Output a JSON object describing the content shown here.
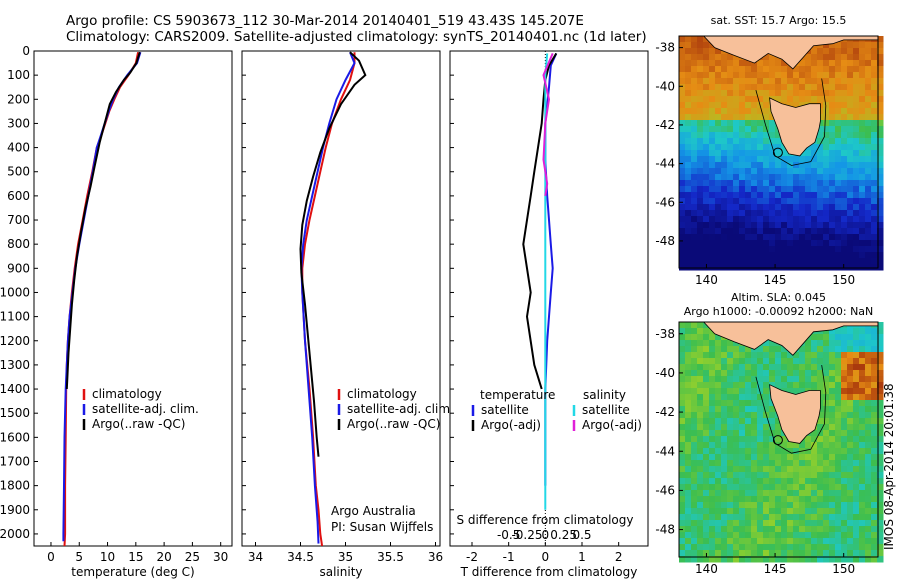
{
  "header": {
    "line1": "Argo profile: CS 5903673_112 30-Mar-2014 20140401_519 43.43S 145.207E",
    "line2": "Climatology: CARS2009. Satellite-adjusted climatology: synTS_20140401.nc (1d later)"
  },
  "colors": {
    "climatology": "#e01010",
    "satellite": "#1a1ae6",
    "argo": "#000000",
    "sat_salinity": "#22d8e6",
    "argo_salinity": "#e020d8",
    "land": "#f7c09a",
    "coast": "#000000"
  },
  "credits": {
    "line1": "Argo Australia",
    "line2": "PI: Susan Wijffels"
  },
  "watermark": "IMOS 08-Apr-2014 20:01:38",
  "chart_data": [
    {
      "type": "line",
      "xlabel": "temperature (deg C)",
      "xticks": [
        "0",
        "5",
        "10",
        "15",
        "20",
        "25",
        "30"
      ],
      "yticks": [
        "0",
        "100",
        "200",
        "300",
        "400",
        "500",
        "600",
        "700",
        "800",
        "900",
        "1000",
        "1100",
        "1200",
        "1300",
        "1400",
        "1500",
        "1600",
        "1700",
        "1800",
        "1900",
        "2000"
      ],
      "xlim": [
        -3,
        32
      ],
      "ylim": [
        2050,
        0
      ],
      "legend": [
        "climatology",
        "satellite-adj. clim.",
        "Argo(..raw -QC)"
      ],
      "series": [
        {
          "name": "climatology",
          "color_key": "climatology",
          "x": [
            15.4,
            15,
            13.7,
            12.2,
            11.2,
            10.3,
            9.6,
            8.9,
            8.1,
            7.3,
            6.4,
            5.6,
            4.8,
            4.2,
            3.7,
            3.3,
            3.0,
            2.8,
            2.7,
            2.6,
            2.5,
            2.5,
            2.4
          ],
          "y": [
            5,
            50,
            100,
            150,
            200,
            250,
            300,
            350,
            400,
            500,
            600,
            700,
            800,
            900,
            1000,
            1100,
            1200,
            1300,
            1400,
            1600,
            1800,
            2000,
            2050
          ]
        },
        {
          "name": "satellite-adj. clim.",
          "color_key": "satellite",
          "x": [
            15.8,
            15.2,
            13.5,
            12,
            11,
            10.2,
            9.5,
            8.8,
            8.1,
            7.4,
            6.6,
            5.8,
            5.0,
            4.3,
            3.8,
            3.3,
            3.0,
            2.8,
            2.6,
            2.4,
            2.3,
            2.2,
            2.2
          ],
          "y": [
            5,
            50,
            100,
            150,
            200,
            250,
            300,
            350,
            400,
            500,
            600,
            700,
            800,
            900,
            1000,
            1100,
            1200,
            1300,
            1400,
            1600,
            1800,
            2000,
            2030
          ]
        },
        {
          "name": "Argo(..raw -QC)",
          "color_key": "argo",
          "x": [
            15.7,
            15.1,
            14,
            12.9,
            11.5,
            10.4,
            9.5,
            8.6,
            7.7,
            7.0,
            6.1,
            5.3,
            4.6,
            4.1,
            3.7,
            3.4,
            3.1,
            2.9,
            2.8
          ],
          "y": [
            5,
            50,
            90,
            120,
            170,
            220,
            300,
            380,
            480,
            560,
            650,
            750,
            850,
            950,
            1050,
            1150,
            1250,
            1350,
            1400
          ]
        }
      ]
    },
    {
      "type": "line",
      "xlabel": "salinity",
      "xticks": [
        "34",
        "34.5",
        "35",
        "35.5",
        "36"
      ],
      "xlim": [
        33.85,
        36.05
      ],
      "ylim": [
        2050,
        0
      ],
      "legend": [
        "climatology",
        "satellite-adj. clim.",
        "Argo(..raw -QC)"
      ],
      "series": [
        {
          "name": "climatology",
          "color_key": "climatology",
          "x": [
            35.1,
            35.1,
            35.05,
            34.95,
            34.85,
            34.78,
            34.72,
            34.66,
            34.6,
            34.55,
            34.52,
            34.52,
            34.55,
            34.6,
            34.64,
            34.67,
            34.7,
            34.72,
            34.74
          ],
          "y": [
            5,
            50,
            120,
            200,
            300,
            400,
            500,
            600,
            700,
            800,
            900,
            1000,
            1200,
            1400,
            1600,
            1800,
            1900,
            2000,
            2050
          ]
        },
        {
          "name": "satellite-adj. clim.",
          "color_key": "satellite",
          "x": [
            35.05,
            35.1,
            35.0,
            34.9,
            34.82,
            34.75,
            34.69,
            34.63,
            34.57,
            34.53,
            34.51,
            34.52,
            34.55,
            34.59,
            34.63,
            34.66,
            34.69,
            34.7
          ],
          "y": [
            5,
            50,
            120,
            200,
            300,
            400,
            500,
            600,
            700,
            800,
            900,
            1000,
            1200,
            1400,
            1600,
            1800,
            1950,
            2040
          ]
        },
        {
          "name": "Argo(..raw -QC)",
          "color_key": "argo",
          "x": [
            35.05,
            35.15,
            35.22,
            35.1,
            34.95,
            34.82,
            34.72,
            34.64,
            34.57,
            34.52,
            34.5,
            34.51,
            34.55,
            34.6,
            34.65,
            34.68,
            34.7
          ],
          "y": [
            5,
            40,
            100,
            140,
            220,
            320,
            420,
            520,
            620,
            720,
            820,
            920,
            1050,
            1250,
            1450,
            1600,
            1680
          ]
        }
      ]
    },
    {
      "type": "line",
      "xlabel": "T difference from climatology",
      "toplabel": "S difference from climatology",
      "xticks": [
        "-2",
        "-1",
        "0",
        "1",
        "2"
      ],
      "top_ticks": [
        "-0.5",
        "-0.25",
        "0",
        "0.25",
        "0.5"
      ],
      "xlim": [
        -2.6,
        2.8
      ],
      "ylim": [
        2050,
        0
      ],
      "legend_left_title": "temperature",
      "legend_right_title": "salinity",
      "legend": [
        "satellite",
        "Argo(-adj)",
        "satellite",
        "Argo(-adj)"
      ],
      "series": [
        {
          "name": "satellite",
          "color_key": "satellite",
          "x": [
            0.3,
            0.15,
            0.1,
            0.0,
            0.0,
            0.05,
            0.1,
            0.15,
            0.2,
            0.15,
            0.1,
            0.05,
            0.0,
            0.0,
            0.0
          ],
          "y": [
            10,
            60,
            150,
            300,
            450,
            600,
            700,
            800,
            900,
            1000,
            1100,
            1200,
            1400,
            1600,
            1800
          ]
        },
        {
          "name": "Argo(-adj)",
          "color_key": "argo",
          "x": [
            0.3,
            0.1,
            0.0,
            -0.05,
            -0.1,
            -0.2,
            -0.3,
            -0.4,
            -0.5,
            -0.6,
            -0.5,
            -0.4,
            -0.5,
            -0.3,
            -0.1
          ],
          "y": [
            10,
            60,
            120,
            200,
            300,
            400,
            500,
            600,
            700,
            800,
            900,
            1000,
            1100,
            1300,
            1400
          ]
        },
        {
          "name": "satellite",
          "color_key": "sat_salinity",
          "x": [
            0.05,
            0.0,
            0.0,
            0.0,
            0.0,
            0.0,
            0.0,
            0.0
          ],
          "y": [
            10,
            100,
            300,
            600,
            900,
            1200,
            1500,
            1900
          ]
        },
        {
          "name": "Argo(-adj)",
          "color_key": "argo_salinity",
          "x": [
            0.2,
            -0.05,
            0.1,
            0.0,
            -0.05,
            0.05,
            0.0
          ],
          "y": [
            10,
            100,
            200,
            300,
            450,
            550,
            600
          ]
        }
      ]
    },
    {
      "type": "heatmap",
      "title": "sat. SST: 15.7  Argo: 15.5",
      "xticks": [
        "140",
        "145",
        "150"
      ],
      "yticks": [
        "-38",
        "-40",
        "-42",
        "-44",
        "-46",
        "-48"
      ],
      "xlim": [
        138,
        152.5
      ],
      "ylim": [
        -49.4,
        -37.4
      ]
    },
    {
      "type": "heatmap",
      "title": "Altim. SLA: 0.045",
      "subtitle": "Argo h1000: -0.00092  h2000: NaN",
      "xticks": [
        "140",
        "145",
        "150"
      ],
      "yticks": [
        "-38",
        "-40",
        "-42",
        "-44",
        "-46",
        "-48"
      ],
      "xlim": [
        138,
        152.5
      ],
      "ylim": [
        -49.4,
        -37.4
      ]
    }
  ]
}
